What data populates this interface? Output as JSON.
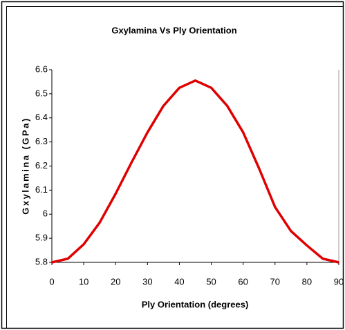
{
  "chart_data": {
    "type": "line",
    "title": "Gxylamina Vs Ply Orientation",
    "x_label": "Ply Orientation (degrees)",
    "y_label": "Gxylamina (GPa)",
    "x": [
      0,
      5,
      10,
      15,
      20,
      25,
      30,
      35,
      40,
      45,
      50,
      55,
      60,
      65,
      70,
      75,
      80,
      85,
      90
    ],
    "series": [
      {
        "name": "Gxylamina",
        "color": "#e00000",
        "values": [
          5.8,
          5.815,
          5.875,
          5.965,
          6.085,
          6.215,
          6.34,
          6.45,
          6.525,
          6.555,
          6.525,
          6.45,
          6.34,
          6.19,
          6.03,
          5.93,
          5.87,
          5.815,
          5.8
        ]
      }
    ],
    "xlim": [
      0,
      90
    ],
    "xticks": [
      0,
      10,
      20,
      30,
      40,
      50,
      60,
      70,
      80,
      90
    ],
    "ylim": [
      5.8,
      6.6
    ],
    "yticks": [
      5.8,
      5.9,
      6,
      6.1,
      6.2,
      6.3,
      6.4,
      6.5,
      6.6
    ],
    "grid": false
  }
}
